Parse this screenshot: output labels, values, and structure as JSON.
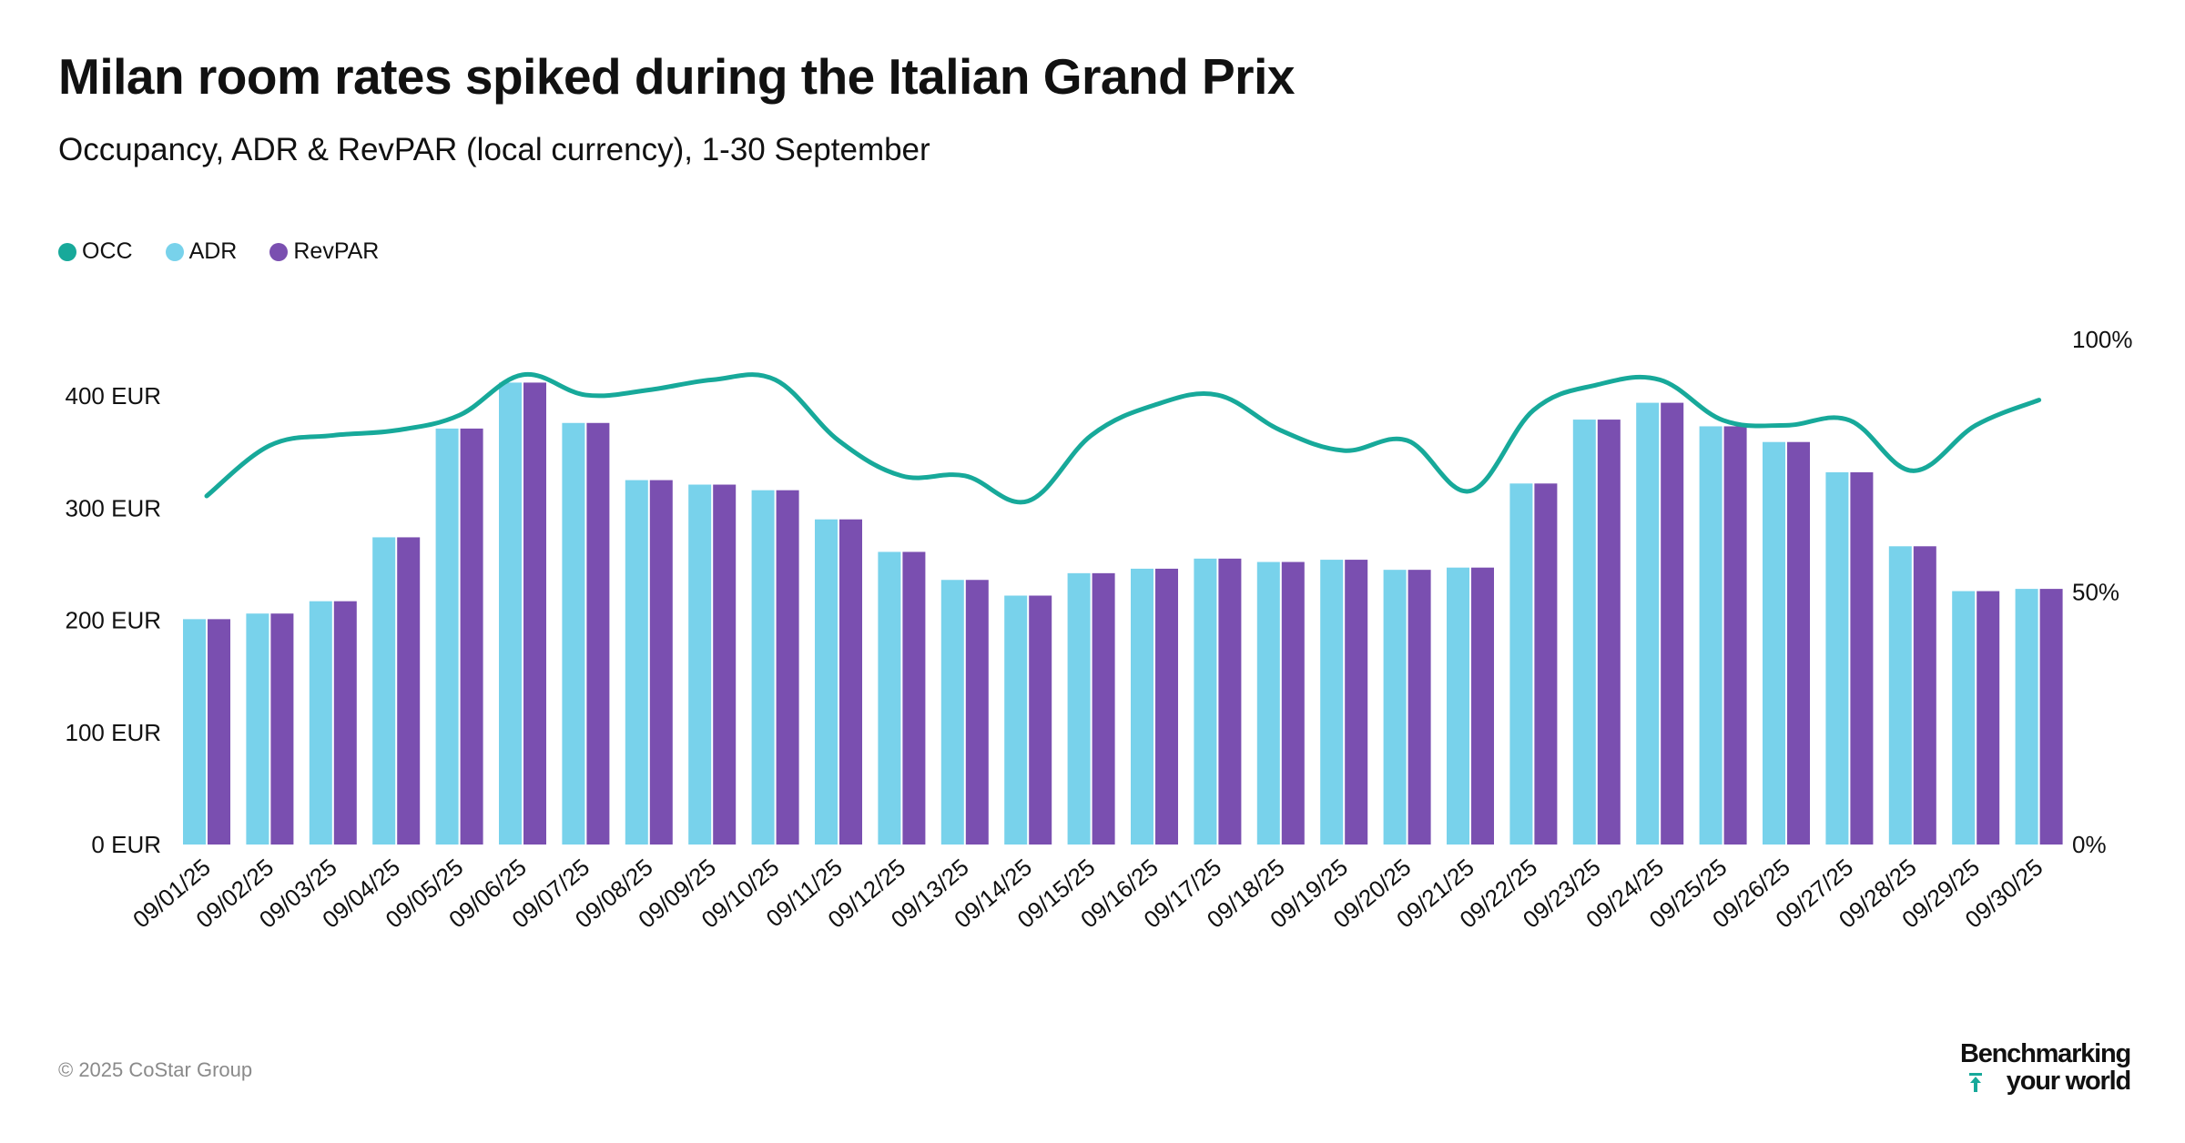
{
  "title": "Milan room rates spiked during the Italian Grand Prix",
  "subtitle": "Occupancy, ADR & RevPAR (local currency), 1-30 September",
  "legend": [
    {
      "label": "OCC",
      "color": "#17a99a"
    },
    {
      "label": "ADR",
      "color": "#78d2eb"
    },
    {
      "label": "RevPAR",
      "color": "#7a4fb0"
    }
  ],
  "footer": {
    "copyright": "© 2025 CoStar Group",
    "brand_line1": "Benchmarking",
    "brand_line2": "your world"
  },
  "chart_data": {
    "type": "bar",
    "categories": [
      "09/01/25",
      "09/02/25",
      "09/03/25",
      "09/04/25",
      "09/05/25",
      "09/06/25",
      "09/07/25",
      "09/08/25",
      "09/09/25",
      "09/10/25",
      "09/11/25",
      "09/12/25",
      "09/13/25",
      "09/14/25",
      "09/15/25",
      "09/16/25",
      "09/17/25",
      "09/18/25",
      "09/19/25",
      "09/20/25",
      "09/21/25",
      "09/22/25",
      "09/23/25",
      "09/24/25",
      "09/25/25",
      "09/26/25",
      "09/27/25",
      "09/28/25",
      "09/29/25",
      "09/30/25"
    ],
    "series": [
      {
        "name": "ADR",
        "type": "bar",
        "axis": "left",
        "color": "#78d2eb",
        "values": [
          201,
          206,
          217,
          274,
          371,
          412,
          376,
          325,
          321,
          316,
          290,
          261,
          236,
          222,
          242,
          246,
          255,
          252,
          254,
          245,
          247,
          322,
          379,
          394,
          373,
          359,
          332,
          266,
          226,
          228
        ]
      },
      {
        "name": "RevPAR",
        "type": "bar",
        "axis": "left",
        "color": "#7a4fb0",
        "values": [
          201,
          206,
          217,
          274,
          371,
          412,
          376,
          325,
          321,
          316,
          290,
          261,
          236,
          222,
          242,
          246,
          255,
          252,
          254,
          245,
          247,
          322,
          379,
          394,
          373,
          359,
          332,
          266,
          226,
          228
        ]
      },
      {
        "name": "OCC",
        "type": "line",
        "axis": "right",
        "color": "#17a99a",
        "values": [
          69,
          79,
          81,
          82,
          85,
          93,
          89,
          90,
          92,
          92,
          80,
          73,
          73,
          68,
          81,
          87,
          89,
          82,
          78,
          80,
          70,
          86,
          91,
          92,
          84,
          83,
          84,
          74,
          83,
          88
        ]
      }
    ],
    "left_axis": {
      "ticks": [
        "0 EUR",
        "100 EUR",
        "200 EUR",
        "300 EUR",
        "400 EUR"
      ],
      "ylim": [
        0,
        450
      ]
    },
    "right_axis": {
      "ticks": [
        "0%",
        "50%",
        "100%"
      ],
      "ylim": [
        0,
        100
      ]
    },
    "grid": false,
    "legend_position": "top-left"
  }
}
